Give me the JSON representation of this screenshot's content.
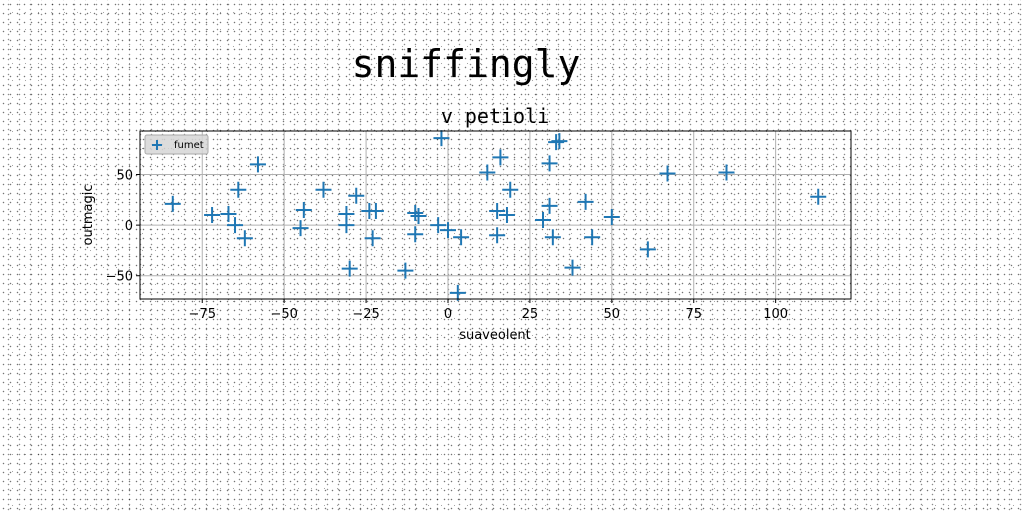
{
  "chart_data": {
    "type": "scatter",
    "suptitle": "sniffingly",
    "title": "v petioli",
    "xlabel": "suaveolent",
    "ylabel": "outmagic",
    "xlim": [
      -94,
      123
    ],
    "ylim": [
      -73,
      93
    ],
    "xticks": [
      -75,
      -50,
      -25,
      0,
      25,
      50,
      75,
      100
    ],
    "yticks": [
      -50,
      0,
      50
    ],
    "grid": true,
    "legend_position": "top-left",
    "marker": "plus",
    "color": "#1f77b4",
    "series": [
      {
        "name": "fumet",
        "x": [
          -84,
          -72,
          -67,
          -65,
          -64,
          -62,
          -58,
          -45,
          -44,
          -38,
          -31,
          -31,
          -30,
          -28,
          -24,
          -23,
          -22,
          -13,
          -10,
          -10,
          -9,
          -3,
          -2,
          0,
          3,
          4,
          12,
          15,
          15,
          16,
          18,
          19,
          29,
          31,
          31,
          32,
          33,
          34,
          38,
          42,
          44,
          50,
          61,
          67,
          85,
          113
        ],
        "y": [
          21,
          10,
          11,
          0,
          35,
          -13,
          60,
          -3,
          15,
          35,
          11,
          0,
          -43,
          29,
          14,
          -13,
          14,
          -45,
          -9,
          12,
          9,
          0,
          86,
          -5,
          -67,
          -12,
          52,
          14,
          -10,
          67,
          10,
          35,
          5,
          61,
          19,
          -12,
          82,
          83,
          -42,
          23,
          -12,
          8,
          -24,
          51,
          52,
          28
        ]
      }
    ]
  }
}
